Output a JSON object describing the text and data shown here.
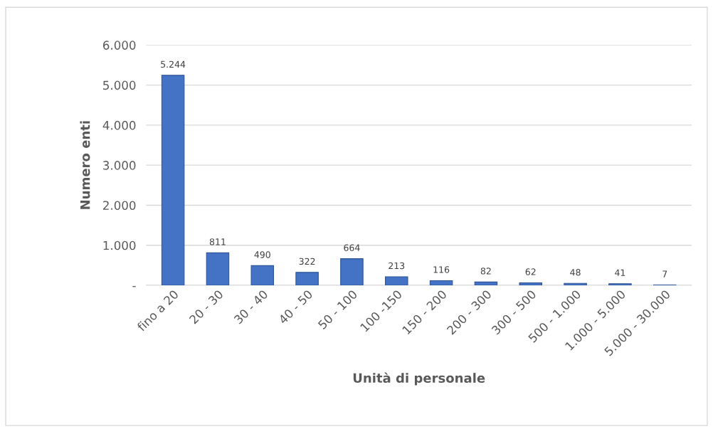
{
  "chart_data": {
    "type": "bar",
    "xlabel": "Unità di personale",
    "ylabel": "Numero enti",
    "categories": [
      "fino a 20",
      "20 - 30",
      "30 - 40",
      "40 - 50",
      "50 - 100",
      "100 -150",
      "150 - 200",
      "200 - 300",
      "300 - 500",
      "500 - 1.000",
      "1.000 - 5.000",
      "5.000 - 30.000"
    ],
    "values": [
      5244,
      811,
      490,
      322,
      664,
      213,
      116,
      82,
      62,
      48,
      41,
      7
    ],
    "value_labels": [
      "5.244",
      "811",
      "490",
      "322",
      "664",
      "213",
      "116",
      "82",
      "62",
      "48",
      "41",
      "7"
    ],
    "color": "#4472c4",
    "ylim": [
      0,
      6000
    ],
    "yticks": [
      {
        "value": 0,
        "label": "-"
      },
      {
        "value": 1000,
        "label": "1.000"
      },
      {
        "value": 2000,
        "label": "2.000"
      },
      {
        "value": 3000,
        "label": "3.000"
      },
      {
        "value": 4000,
        "label": "4.000"
      },
      {
        "value": 5000,
        "label": "5.000"
      },
      {
        "value": 6000,
        "label": "6.000"
      }
    ],
    "grid": "y",
    "legend": false
  }
}
